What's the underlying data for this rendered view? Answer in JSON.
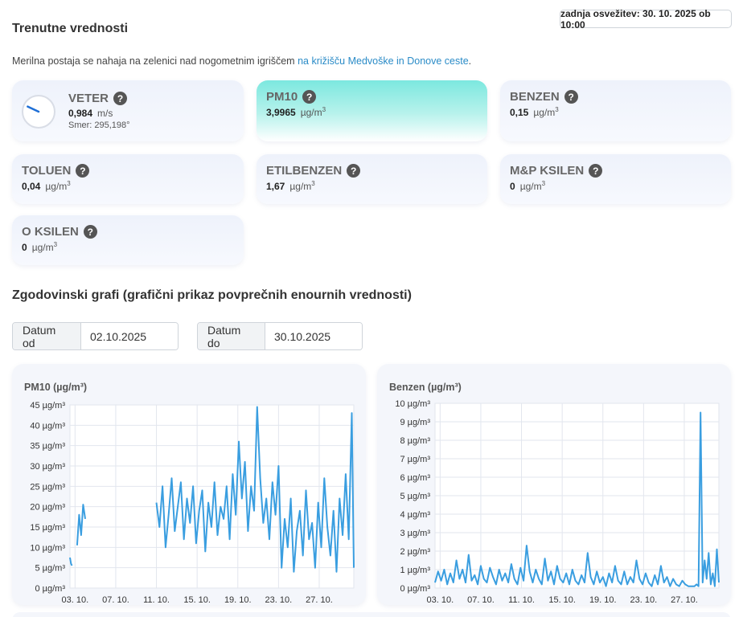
{
  "header": {
    "refresh_label": "zadnja osvežitev: 30. 10. 2025 ob 10:00",
    "title": "Trenutne vrednosti",
    "intro_text": "Merilna postaja se nahaja na zelenici nad nogometnim igriščem ",
    "intro_link": "na križišču Medvoške in Donove ceste",
    "intro_end": "."
  },
  "cards": {
    "veter": {
      "name": "VETER",
      "value": "0,984",
      "unit": "m/s",
      "direction": "Smer: 295,198°",
      "direction_deg": 295.198
    },
    "pm10": {
      "name": "PM10",
      "value": "3,9965",
      "unit": "µg/m",
      "unit_sup": "3"
    },
    "benzen": {
      "name": "BENZEN",
      "value": "0,15",
      "unit": "µg/m",
      "unit_sup": "3"
    },
    "toluen": {
      "name": "TOLUEN",
      "value": "0,04",
      "unit": "µg/m",
      "unit_sup": "3"
    },
    "etilbenzen": {
      "name": "ETILBENZEN",
      "value": "1,67",
      "unit": "µg/m",
      "unit_sup": "3"
    },
    "mp_ksilen": {
      "name": "M&P KSILEN",
      "value": "0",
      "unit": "µg/m",
      "unit_sup": "3"
    },
    "o_ksilen": {
      "name": "O KSILEN",
      "value": "0",
      "unit": "µg/m",
      "unit_sup": "3"
    }
  },
  "history": {
    "title": "Zgodovinski grafi (grafični prikaz povprečnih enournih vrednosti)",
    "date_from_label": "Datum od",
    "date_from_value": "02.10.2025",
    "date_to_label": "Datum do",
    "date_to_value": "30.10.2025"
  },
  "colors": {
    "accent": "#2a8bc7",
    "line": "#3a9ee0",
    "active_card": "#7ce8df"
  },
  "chart_data": [
    {
      "type": "line",
      "title": "PM10 (µg/m³)",
      "x_tick_labels": [
        "03. 10.",
        "07. 10.",
        "11. 10.",
        "15. 10.",
        "19. 10.",
        "23. 10.",
        "27. 10."
      ],
      "x_ticks_day": [
        3,
        7,
        11,
        15,
        19,
        23,
        27
      ],
      "x_range_day": [
        2.5,
        30.4
      ],
      "ylim": [
        0,
        45
      ],
      "y_ticks": [
        0,
        5,
        10,
        15,
        20,
        25,
        30,
        35,
        40,
        45
      ],
      "y_unit": "µg/m³",
      "grid": true,
      "series": [
        {
          "segments": [
            {
              "x_day": [
                2.5,
                2.6,
                2.7
              ],
              "values": [
                7.5,
                6,
                5.5
              ]
            },
            {
              "x_day": [
                3.2,
                3.4,
                3.6,
                3.8,
                4.0
              ],
              "values": [
                10.5,
                18,
                13,
                20.5,
                17
              ]
            },
            {
              "x_day": [
                11.0,
                11.3,
                11.6,
                11.9,
                12.2,
                12.5,
                12.8,
                13.1,
                13.4,
                13.7,
                14.0,
                14.3,
                14.6,
                14.9,
                15.2,
                15.5,
                15.8,
                16.1,
                16.4,
                16.7,
                17.0,
                17.3,
                17.6,
                17.9,
                18.2,
                18.5,
                18.8,
                19.1,
                19.4,
                19.7,
                20.0,
                20.3,
                20.6,
                20.9,
                21.2,
                21.5,
                21.8,
                22.1,
                22.4,
                22.7,
                23.0,
                23.3,
                23.6,
                23.9,
                24.2,
                24.5,
                24.8,
                25.1,
                25.4,
                25.7,
                26.0,
                26.3,
                26.6,
                26.9,
                27.2,
                27.5,
                27.8,
                28.1,
                28.4,
                28.7,
                29.0,
                29.3,
                29.6,
                29.9,
                30.2,
                30.4
              ],
              "values": [
                21,
                15,
                25,
                10,
                18,
                27,
                14,
                20,
                26,
                12,
                22,
                16,
                25,
                11,
                19,
                24,
                9,
                21,
                15,
                26,
                13,
                20,
                17,
                25,
                12,
                28,
                18,
                36,
                22,
                31,
                14,
                25,
                19,
                44.5,
                27,
                16,
                22,
                12,
                26,
                18,
                30,
                5,
                17,
                10,
                22,
                4,
                14,
                19,
                8,
                24,
                12,
                16,
                5,
                21,
                10,
                27,
                15,
                8,
                19,
                4,
                22,
                13,
                28,
                12,
                43,
                5
              ]
            }
          ]
        }
      ]
    },
    {
      "type": "line",
      "title": "Benzen (µg/m³)",
      "x_tick_labels": [
        "03. 10.",
        "07. 10.",
        "11. 10.",
        "15. 10.",
        "19. 10.",
        "23. 10.",
        "27. 10."
      ],
      "x_ticks_day": [
        3,
        7,
        11,
        15,
        19,
        23,
        27
      ],
      "x_range_day": [
        2.5,
        30.4
      ],
      "ylim": [
        0,
        10
      ],
      "y_ticks": [
        0,
        1,
        2,
        3,
        4,
        5,
        6,
        7,
        8,
        9,
        10
      ],
      "y_unit": "µg/m³",
      "grid": true,
      "series": [
        {
          "segments": [
            {
              "x_day": [
                2.5,
                2.8,
                3.1,
                3.4,
                3.7,
                4.0,
                4.3,
                4.6,
                4.9,
                5.2,
                5.5,
                5.8,
                6.1,
                6.4,
                6.7,
                7.0,
                7.3,
                7.6,
                7.9,
                8.2,
                8.5,
                8.8,
                9.1,
                9.4,
                9.7,
                10.0,
                10.3,
                10.6,
                10.9,
                11.2,
                11.5,
                11.8,
                12.1,
                12.4,
                12.7,
                13.0,
                13.3,
                13.6,
                13.9,
                14.2,
                14.5,
                14.8,
                15.1,
                15.4,
                15.7,
                16.0,
                16.3,
                16.6,
                16.9,
                17.2,
                17.5,
                17.8,
                18.1,
                18.4,
                18.7,
                19.0,
                19.3,
                19.6,
                19.9,
                20.2,
                20.5,
                20.8,
                21.1,
                21.4,
                21.7,
                22.0,
                22.3,
                22.6,
                22.9,
                23.2,
                23.5,
                23.8,
                24.1,
                24.4,
                24.7,
                25.0,
                25.3,
                25.6,
                25.9,
                26.2,
                26.5,
                26.8,
                27.1,
                27.4,
                27.7,
                28.0,
                28.2,
                28.4,
                28.6,
                28.8,
                29.0,
                29.2,
                29.4,
                29.6,
                29.8,
                30.0,
                30.2,
                30.4
              ],
              "values": [
                0.3,
                0.9,
                0.4,
                1.0,
                0.2,
                0.8,
                0.3,
                1.5,
                0.5,
                1.0,
                0.3,
                1.8,
                0.4,
                0.7,
                0.2,
                1.2,
                0.5,
                0.3,
                1.1,
                0.6,
                0.2,
                1.0,
                0.4,
                0.8,
                0.3,
                1.3,
                0.5,
                0.2,
                1.1,
                0.4,
                2.3,
                0.9,
                0.3,
                1.0,
                0.5,
                0.2,
                1.6,
                0.4,
                0.9,
                0.2,
                1.2,
                0.5,
                0.3,
                0.8,
                0.2,
                1.0,
                0.4,
                0.2,
                0.7,
                0.3,
                1.9,
                0.6,
                0.2,
                0.9,
                0.3,
                0.6,
                0.1,
                0.8,
                0.3,
                1.2,
                0.4,
                0.2,
                0.9,
                0.2,
                0.6,
                0.3,
                1.5,
                0.5,
                0.2,
                0.8,
                0.3,
                0.1,
                0.7,
                0.2,
                1.2,
                0.3,
                0.6,
                0.1,
                0.5,
                0.2,
                0.1,
                0.4,
                0.2,
                0.1,
                0.1,
                0.1,
                0.2,
                0.1,
                9.5,
                0.3,
                1.5,
                0.5,
                1.9,
                0.2,
                0.8,
                0.1,
                2.1,
                0.3
              ]
            }
          ]
        }
      ]
    }
  ]
}
